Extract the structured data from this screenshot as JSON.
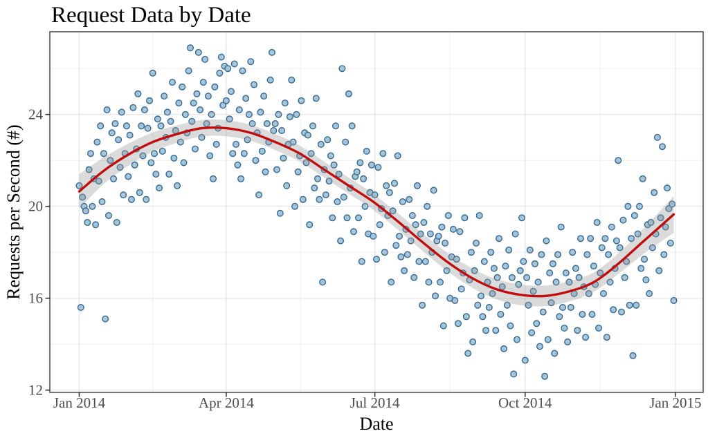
{
  "title": "Request Data by Date",
  "chart_data": {
    "type": "scatter",
    "title": "Request Data by Date",
    "xlabel": "Date",
    "ylabel": "Requests per Second (#)",
    "x_unit": "days since 2014-01-01",
    "x_ticks": [
      {
        "d": 0,
        "label": "Jan 2014"
      },
      {
        "d": 90,
        "label": "Apr 2014"
      },
      {
        "d": 181,
        "label": "Jul 2014"
      },
      {
        "d": 273,
        "label": "Oct 2014"
      },
      {
        "d": 365,
        "label": "Jan 2015"
      }
    ],
    "y_ticks": [
      12,
      16,
      20,
      24
    ],
    "x_minor_days": [
      45,
      135.5,
      227,
      319
    ],
    "y_minor": [
      14,
      18,
      22,
      26
    ],
    "xlim_days": [
      -18,
      382
    ],
    "ylim": [
      11.9,
      27.6
    ],
    "grid": true,
    "legend": "none",
    "points_values_by_day": [
      20.9,
      15.6,
      20.4,
      20.0,
      19.8,
      19.3,
      21.6,
      22.3,
      20.0,
      21.2,
      19.2,
      22.8,
      21.1,
      23.5,
      20.2,
      22.3,
      15.1,
      24.2,
      19.6,
      22.0,
      23.2,
      21.2,
      23.6,
      19.3,
      22.9,
      21.7,
      24.1,
      20.5,
      22.3,
      23.5,
      21.3,
      23.1,
      20.3,
      24.3,
      21.8,
      22.5,
      24.9,
      20.6,
      23.5,
      22.2,
      24.2,
      20.3,
      23.4,
      24.6,
      21.9,
      25.8,
      22.3,
      21.4,
      23.8,
      20.8,
      23.5,
      22.4,
      24.8,
      23.0,
      24.1,
      21.4,
      23.7,
      25.4,
      22.1,
      23.3,
      20.9,
      24.5,
      22.8,
      25.2,
      21.9,
      24.0,
      23.2,
      25.9,
      26.9,
      23.7,
      24.5,
      22.5,
      24.9,
      26.7,
      24.2,
      23.0,
      25.4,
      26.4,
      23.6,
      24.8,
      22.2,
      24.0,
      21.2,
      25.2,
      22.7,
      23.4,
      25.8,
      26.5,
      24.4,
      26.1,
      24.6,
      26.0,
      23.8,
      25.0,
      22.3,
      26.2,
      22.7,
      21.8,
      24.2,
      21.2,
      25.9,
      22.3,
      24.7,
      22.9,
      24.0,
      26.3,
      23.6,
      25.3,
      22.0,
      23.2,
      20.5,
      24.1,
      22.4,
      24.8,
      21.5,
      23.6,
      22.8,
      25.5,
      26.7,
      23.3,
      23.6,
      21.6,
      24.0,
      19.7,
      23.3,
      22.1,
      24.5,
      20.9,
      22.7,
      23.9,
      25.5,
      22.8,
      20.0,
      24.0,
      21.5,
      22.2,
      24.6,
      20.3,
      23.2,
      21.9,
      23.1,
      19.2,
      22.3,
      23.5,
      20.8,
      24.7,
      21.2,
      20.3,
      22.7,
      16.7,
      21.6,
      20.5,
      22.9,
      21.1,
      22.2,
      19.5,
      21.8,
      23.5,
      20.2,
      21.4,
      18.5,
      26.0,
      20.4,
      22.8,
      19.5,
      24.9,
      20.8,
      23.5,
      18.9,
      21.3,
      21.5,
      19.5,
      21.9,
      17.6,
      21.2,
      20.0,
      22.4,
      18.8,
      20.6,
      21.8,
      18.7,
      20.5,
      17.7,
      21.7,
      19.2,
      19.9,
      22.3,
      18.0,
      20.9,
      19.6,
      20.6,
      16.7,
      19.8,
      21.0,
      18.3,
      22.2,
      18.7,
      17.8,
      20.2,
      17.2,
      19.0,
      17.9,
      20.3,
      18.5,
      19.6,
      16.9,
      19.2,
      20.9,
      17.6,
      18.8,
      15.7,
      19.3,
      17.6,
      20.0,
      16.7,
      18.8,
      18.0,
      20.7,
      16.1,
      18.5,
      18.7,
      16.7,
      19.1,
      14.8,
      18.4,
      17.2,
      19.6,
      16.0,
      17.8,
      19.0,
      15.9,
      17.7,
      14.9,
      18.9,
      16.4,
      17.1,
      19.5,
      15.2,
      13.6,
      16.8,
      18.0,
      14.1,
      17.2,
      18.4,
      15.7,
      19.6,
      16.1,
      15.2,
      17.6,
      14.6,
      16.7,
      15.6,
      18.0,
      16.2,
      17.3,
      14.6,
      16.9,
      18.6,
      15.3,
      16.5,
      13.8,
      17.4,
      15.7,
      18.1,
      14.8,
      16.9,
      12.7,
      18.8,
      14.2,
      16.6,
      17.2,
      19.5,
      17.6,
      13.3,
      16.9,
      15.7,
      18.1,
      14.5,
      16.3,
      17.5,
      14.9,
      16.7,
      13.9,
      17.9,
      15.4,
      12.6,
      18.5,
      14.2,
      17.1,
      15.8,
      17.5,
      13.6,
      16.7,
      17.9,
      15.2,
      19.1,
      15.6,
      14.7,
      17.1,
      14.1,
      16.7,
      15.6,
      18.0,
      16.2,
      17.3,
      14.6,
      16.9,
      18.6,
      15.3,
      16.5,
      14.3,
      17.9,
      16.2,
      18.6,
      15.3,
      17.4,
      16.6,
      19.3,
      14.7,
      17.1,
      18.2,
      16.2,
      18.6,
      14.3,
      17.9,
      16.7,
      19.1,
      15.5,
      17.3,
      18.5,
      22.0,
      18.2,
      15.4,
      19.4,
      16.9,
      17.6,
      20.0,
      15.7,
      18.6,
      13.5,
      19.6,
      15.7,
      18.8,
      20.0,
      17.3,
      21.2,
      17.7,
      16.8,
      19.2,
      16.2,
      19.3,
      18.2,
      20.6,
      18.8,
      23.0,
      17.2,
      19.5,
      22.6,
      17.9,
      19.1,
      20.8,
      19.9,
      18.4,
      20.1,
      15.9
    ],
    "smooth": {
      "kind": "loess",
      "anchors_day_value_halfwidth": [
        [
          0,
          20.65,
          0.75
        ],
        [
          15,
          21.55,
          0.58
        ],
        [
          30,
          22.25,
          0.48
        ],
        [
          45,
          22.8,
          0.42
        ],
        [
          60,
          23.15,
          0.38
        ],
        [
          75,
          23.4,
          0.36
        ],
        [
          90,
          23.4,
          0.35
        ],
        [
          105,
          23.2,
          0.35
        ],
        [
          120,
          22.8,
          0.35
        ],
        [
          135,
          22.3,
          0.35
        ],
        [
          150,
          21.6,
          0.35
        ],
        [
          165,
          20.9,
          0.35
        ],
        [
          180,
          20.2,
          0.35
        ],
        [
          195,
          19.35,
          0.36
        ],
        [
          210,
          18.45,
          0.38
        ],
        [
          225,
          17.6,
          0.4
        ],
        [
          240,
          16.9,
          0.42
        ],
        [
          255,
          16.4,
          0.44
        ],
        [
          270,
          16.15,
          0.45
        ],
        [
          285,
          16.1,
          0.45
        ],
        [
          300,
          16.3,
          0.44
        ],
        [
          315,
          16.7,
          0.42
        ],
        [
          330,
          17.5,
          0.45
        ],
        [
          345,
          18.45,
          0.55
        ],
        [
          364,
          19.65,
          0.8
        ]
      ]
    },
    "colors": {
      "background": "#ffffff",
      "point_fill": "#a5c6da",
      "point_stroke": "#35688f",
      "trend": "#c00d0d",
      "band": "rgba(153,153,153,0.35)",
      "grid_major": "#e3e3e3",
      "grid_minor": "#efefef",
      "panel_border": "#474747",
      "tick": "#353535",
      "axis_text": "#4d4d4d",
      "title": "#000000"
    }
  }
}
